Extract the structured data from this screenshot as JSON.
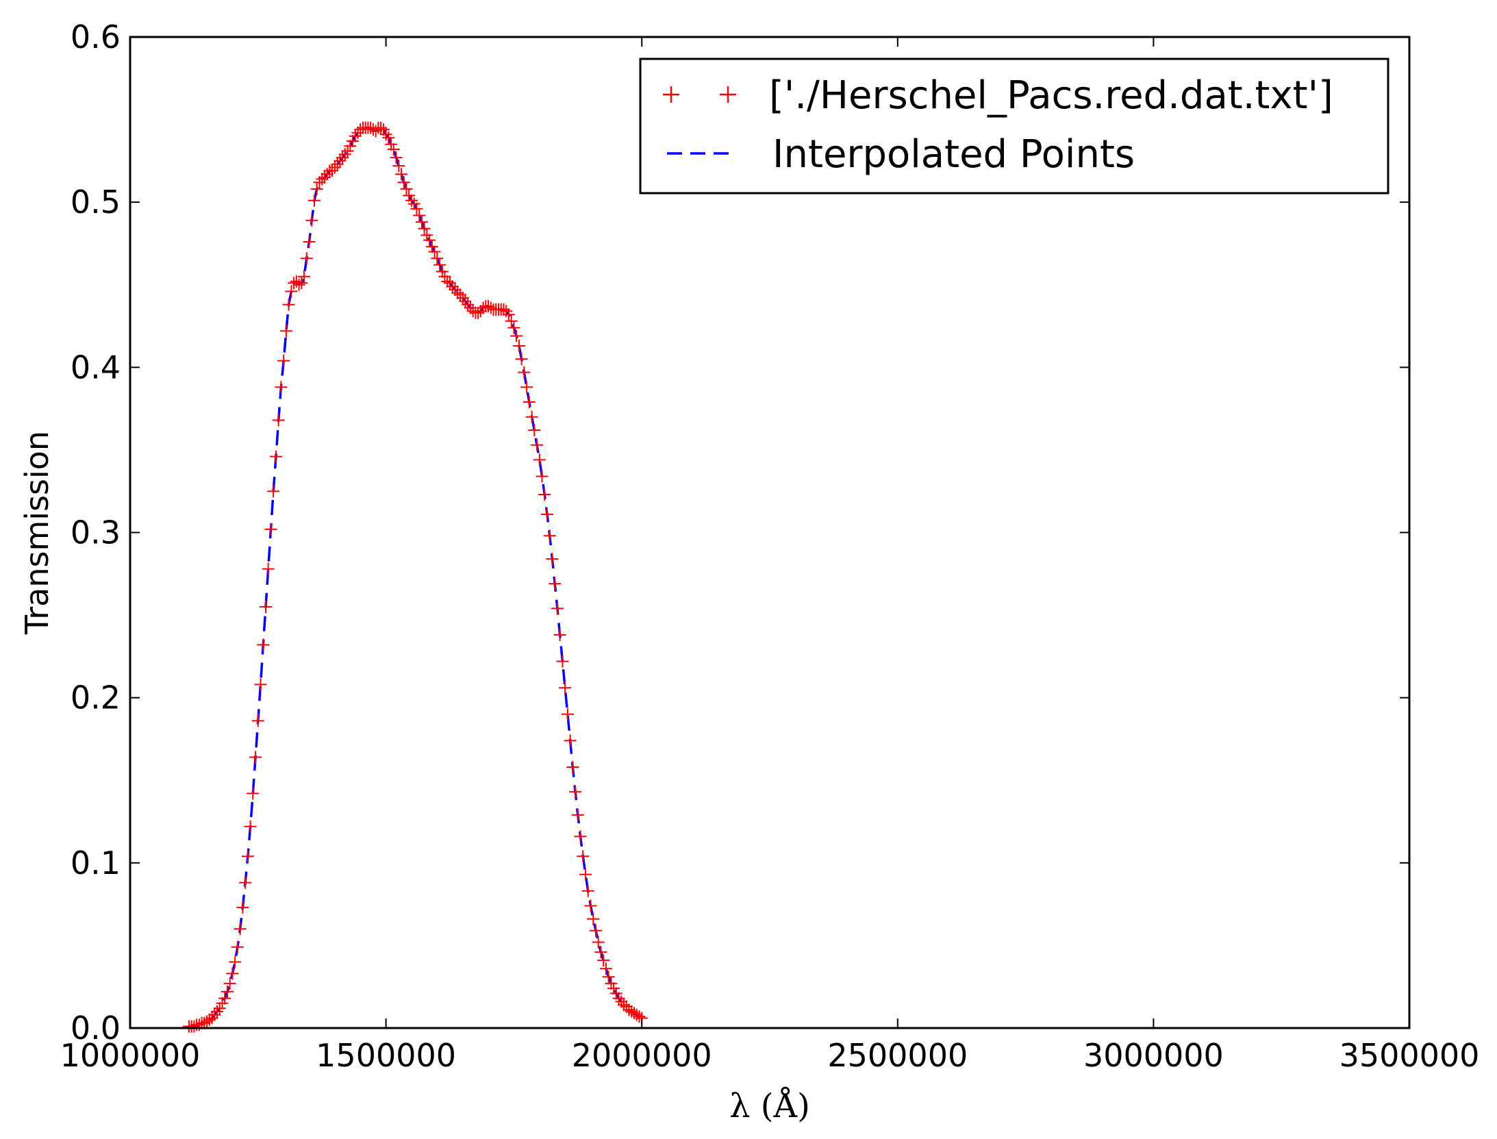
{
  "chart_data": {
    "type": "line",
    "xlabel": "λ (Å)",
    "ylabel": "Transmission",
    "xlim": [
      1000000,
      3500000
    ],
    "ylim": [
      0,
      0.6
    ],
    "x_ticks": [
      "1000000",
      "1500000",
      "2000000",
      "2500000",
      "3000000",
      "3500000"
    ],
    "y_ticks": [
      "0.0",
      "0.1",
      "0.2",
      "0.3",
      "0.4",
      "0.5",
      "0.6"
    ],
    "grid": false,
    "legend_position": "top-right",
    "series": [
      {
        "name": "['./Herschel_Pacs.red.dat.txt']",
        "style": "markers",
        "marker": "+",
        "color": "#ff0000",
        "points": [
          [
            1115000,
            0.001
          ],
          [
            1120000,
            0.001
          ],
          [
            1125000,
            0.001
          ],
          [
            1130000,
            0.002
          ],
          [
            1135000,
            0.002
          ],
          [
            1140000,
            0.003
          ],
          [
            1145000,
            0.003
          ],
          [
            1150000,
            0.004
          ],
          [
            1155000,
            0.005
          ],
          [
            1160000,
            0.006
          ],
          [
            1165000,
            0.008
          ],
          [
            1170000,
            0.01
          ],
          [
            1175000,
            0.012
          ],
          [
            1180000,
            0.015
          ],
          [
            1185000,
            0.018
          ],
          [
            1190000,
            0.022
          ],
          [
            1195000,
            0.027
          ],
          [
            1200000,
            0.033
          ],
          [
            1205000,
            0.04
          ],
          [
            1210000,
            0.049
          ],
          [
            1215000,
            0.06
          ],
          [
            1220000,
            0.073
          ],
          [
            1225000,
            0.088
          ],
          [
            1230000,
            0.104
          ],
          [
            1235000,
            0.122
          ],
          [
            1240000,
            0.142
          ],
          [
            1245000,
            0.164
          ],
          [
            1250000,
            0.186
          ],
          [
            1255000,
            0.208
          ],
          [
            1260000,
            0.232
          ],
          [
            1265000,
            0.255
          ],
          [
            1270000,
            0.278
          ],
          [
            1275000,
            0.302
          ],
          [
            1280000,
            0.325
          ],
          [
            1285000,
            0.346
          ],
          [
            1290000,
            0.368
          ],
          [
            1295000,
            0.388
          ],
          [
            1300000,
            0.404
          ],
          [
            1305000,
            0.422
          ],
          [
            1310000,
            0.438
          ],
          [
            1315000,
            0.446
          ],
          [
            1320000,
            0.451
          ],
          [
            1325000,
            0.452
          ],
          [
            1330000,
            0.45
          ],
          [
            1335000,
            0.451
          ],
          [
            1340000,
            0.455
          ],
          [
            1345000,
            0.466
          ],
          [
            1350000,
            0.476
          ],
          [
            1355000,
            0.489
          ],
          [
            1360000,
            0.501
          ],
          [
            1365000,
            0.508
          ],
          [
            1370000,
            0.512
          ],
          [
            1375000,
            0.514
          ],
          [
            1380000,
            0.515
          ],
          [
            1385000,
            0.517
          ],
          [
            1390000,
            0.519
          ],
          [
            1395000,
            0.519
          ],
          [
            1400000,
            0.521
          ],
          [
            1405000,
            0.523
          ],
          [
            1410000,
            0.525
          ],
          [
            1415000,
            0.527
          ],
          [
            1420000,
            0.529
          ],
          [
            1425000,
            0.531
          ],
          [
            1430000,
            0.534
          ],
          [
            1435000,
            0.537
          ],
          [
            1440000,
            0.54
          ],
          [
            1445000,
            0.542
          ],
          [
            1450000,
            0.544
          ],
          [
            1455000,
            0.545
          ],
          [
            1460000,
            0.545
          ],
          [
            1465000,
            0.545
          ],
          [
            1470000,
            0.545
          ],
          [
            1475000,
            0.544
          ],
          [
            1480000,
            0.543
          ],
          [
            1485000,
            0.545
          ],
          [
            1490000,
            0.545
          ],
          [
            1495000,
            0.544
          ],
          [
            1500000,
            0.541
          ],
          [
            1505000,
            0.539
          ],
          [
            1510000,
            0.535
          ],
          [
            1515000,
            0.532
          ],
          [
            1520000,
            0.527
          ],
          [
            1525000,
            0.522
          ],
          [
            1530000,
            0.517
          ],
          [
            1535000,
            0.512
          ],
          [
            1540000,
            0.508
          ],
          [
            1545000,
            0.504
          ],
          [
            1550000,
            0.501
          ],
          [
            1555000,
            0.499
          ],
          [
            1560000,
            0.496
          ],
          [
            1565000,
            0.492
          ],
          [
            1570000,
            0.488
          ],
          [
            1575000,
            0.484
          ],
          [
            1580000,
            0.48
          ],
          [
            1585000,
            0.477
          ],
          [
            1590000,
            0.473
          ],
          [
            1595000,
            0.47
          ],
          [
            1600000,
            0.466
          ],
          [
            1605000,
            0.462
          ],
          [
            1610000,
            0.458
          ],
          [
            1615000,
            0.455
          ],
          [
            1620000,
            0.452
          ],
          [
            1625000,
            0.451
          ],
          [
            1630000,
            0.449
          ],
          [
            1635000,
            0.447
          ],
          [
            1640000,
            0.445
          ],
          [
            1645000,
            0.444
          ],
          [
            1650000,
            0.442
          ],
          [
            1655000,
            0.44
          ],
          [
            1660000,
            0.438
          ],
          [
            1665000,
            0.436
          ],
          [
            1670000,
            0.434
          ],
          [
            1675000,
            0.433
          ],
          [
            1680000,
            0.433
          ],
          [
            1685000,
            0.434
          ],
          [
            1690000,
            0.436
          ],
          [
            1695000,
            0.437
          ],
          [
            1700000,
            0.437
          ],
          [
            1705000,
            0.436
          ],
          [
            1710000,
            0.435
          ],
          [
            1715000,
            0.435
          ],
          [
            1720000,
            0.435
          ],
          [
            1725000,
            0.435
          ],
          [
            1730000,
            0.435
          ],
          [
            1735000,
            0.434
          ],
          [
            1740000,
            0.432
          ],
          [
            1745000,
            0.428
          ],
          [
            1750000,
            0.424
          ],
          [
            1755000,
            0.419
          ],
          [
            1760000,
            0.413
          ],
          [
            1765000,
            0.405
          ],
          [
            1770000,
            0.397
          ],
          [
            1775000,
            0.388
          ],
          [
            1780000,
            0.379
          ],
          [
            1785000,
            0.37
          ],
          [
            1790000,
            0.362
          ],
          [
            1795000,
            0.353
          ],
          [
            1800000,
            0.344
          ],
          [
            1805000,
            0.334
          ],
          [
            1810000,
            0.323
          ],
          [
            1815000,
            0.311
          ],
          [
            1820000,
            0.298
          ],
          [
            1825000,
            0.284
          ],
          [
            1830000,
            0.269
          ],
          [
            1835000,
            0.254
          ],
          [
            1840000,
            0.238
          ],
          [
            1845000,
            0.222
          ],
          [
            1850000,
            0.206
          ],
          [
            1855000,
            0.19
          ],
          [
            1860000,
            0.174
          ],
          [
            1865000,
            0.158
          ],
          [
            1870000,
            0.143
          ],
          [
            1875000,
            0.129
          ],
          [
            1880000,
            0.116
          ],
          [
            1885000,
            0.104
          ],
          [
            1890000,
            0.093
          ],
          [
            1895000,
            0.083
          ],
          [
            1900000,
            0.074
          ],
          [
            1905000,
            0.066
          ],
          [
            1910000,
            0.059
          ],
          [
            1915000,
            0.052
          ],
          [
            1920000,
            0.046
          ],
          [
            1925000,
            0.041
          ],
          [
            1930000,
            0.036
          ],
          [
            1935000,
            0.031
          ],
          [
            1940000,
            0.027
          ],
          [
            1945000,
            0.024
          ],
          [
            1950000,
            0.021
          ],
          [
            1955000,
            0.018
          ],
          [
            1960000,
            0.016
          ],
          [
            1965000,
            0.014
          ],
          [
            1970000,
            0.013
          ],
          [
            1975000,
            0.011
          ],
          [
            1980000,
            0.01
          ],
          [
            1985000,
            0.009
          ],
          [
            1990000,
            0.008
          ],
          [
            1995000,
            0.007
          ],
          [
            2000000,
            0.006
          ]
        ]
      },
      {
        "name": "Interpolated Points",
        "style": "dashed",
        "color": "#0000ff"
      }
    ]
  }
}
